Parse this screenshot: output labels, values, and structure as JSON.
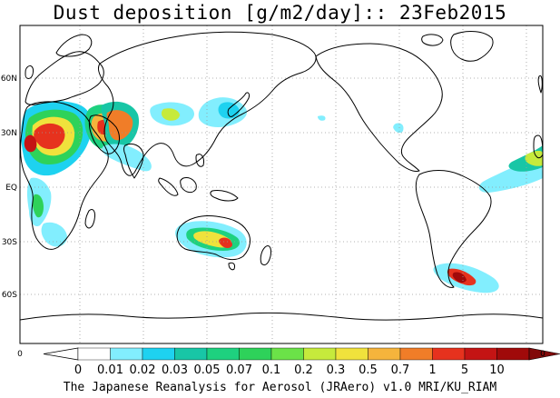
{
  "title": "Dust deposition [g/m2/day]:: 23Feb2015",
  "footer": "The Japanese Reanalysis for Aerosol (JRAero) v1.0 MRI/KU_RIAM",
  "lat_labels": [
    "60N",
    "30N",
    "EQ",
    "30S",
    "60S"
  ],
  "colorbar": {
    "ticks": [
      "0",
      "0.01",
      "0.02",
      "0.03",
      "0.05",
      "0.07",
      "0.1",
      "0.2",
      "0.3",
      "0.5",
      "0.7",
      "1",
      "5",
      "10"
    ],
    "colors": [
      "#ffffff",
      "#82eefe",
      "#1ed2f0",
      "#18c6a6",
      "#1ed17f",
      "#2ed25a",
      "#6be248",
      "#c6ea3c",
      "#f0e23c",
      "#f5b43c",
      "#f07d28",
      "#e6321e",
      "#c41414",
      "#a00a0a",
      "#820a0a"
    ],
    "under_color": "#ffffff",
    "edge_left": "0",
    "edge_right": "0"
  },
  "colors": {
    "coast": "#000000",
    "grid": "#9a9a9a"
  }
}
